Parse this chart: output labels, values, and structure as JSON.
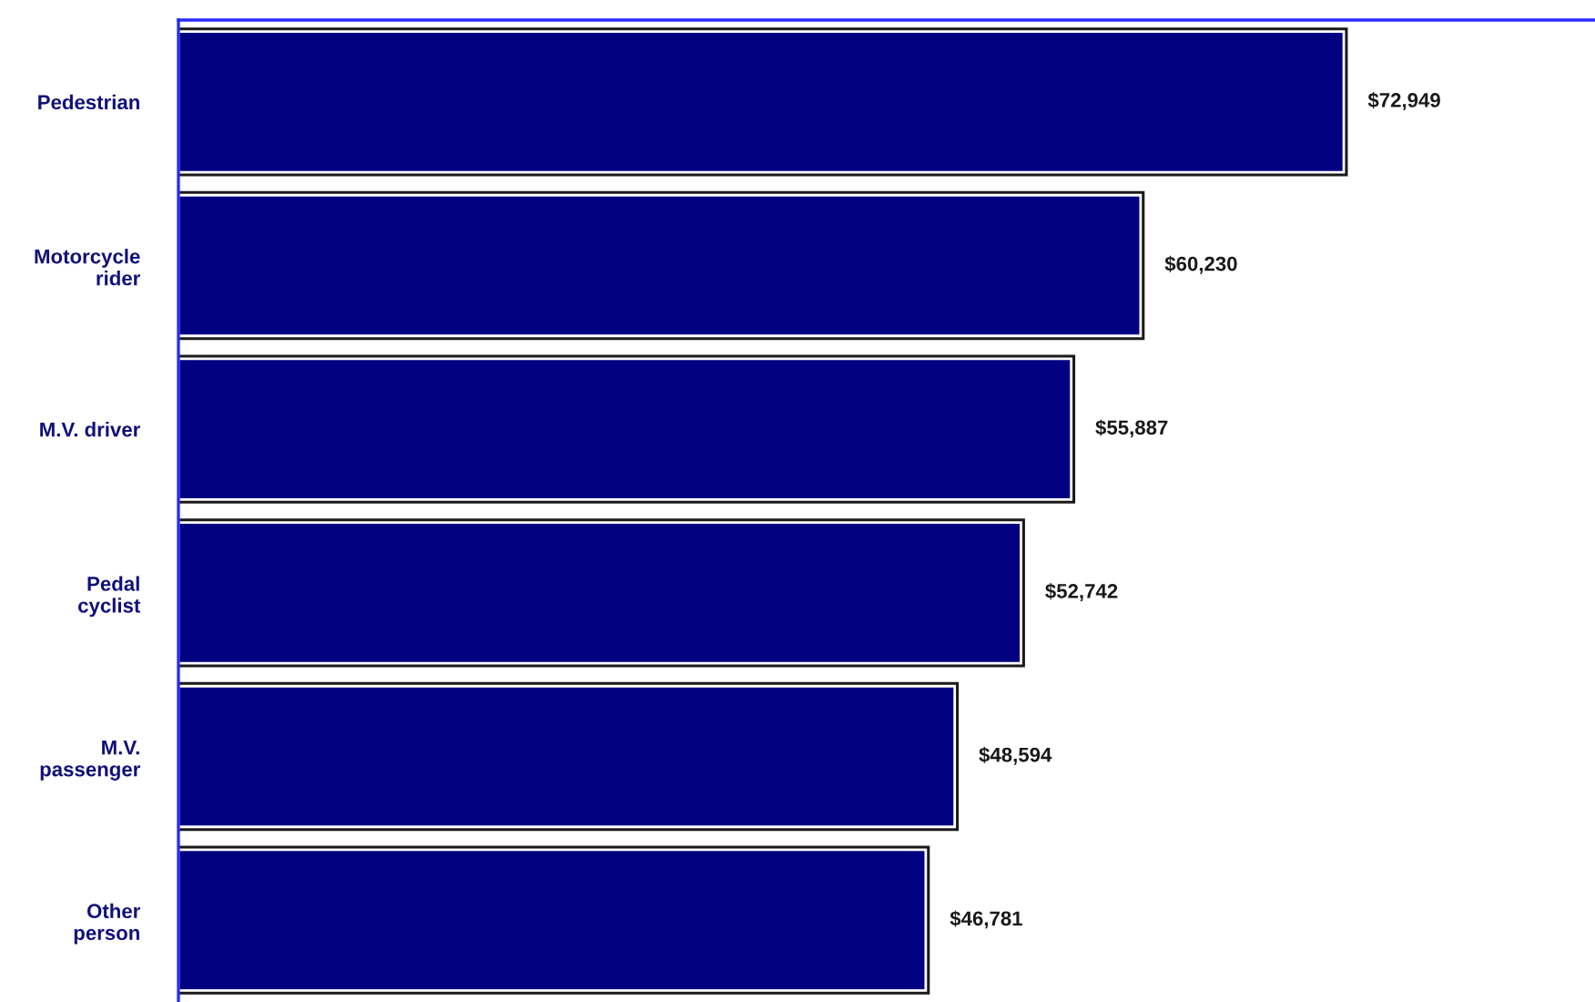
{
  "chart_data": {
    "type": "bar",
    "orientation": "horizontal",
    "categories": [
      "Pedestrian",
      "Motorcycle\nrider",
      "M.V. driver",
      "Pedal\ncyclist",
      "M.V.\npassenger",
      "Other\nperson"
    ],
    "values": [
      72949,
      60230,
      55887,
      52742,
      48594,
      46781
    ],
    "value_labels": [
      "$72,949",
      "$60,230",
      "$55,887",
      "$52,742",
      "$48,594",
      "$46,781"
    ],
    "color": "#000080",
    "tick_labels": "y"
  }
}
